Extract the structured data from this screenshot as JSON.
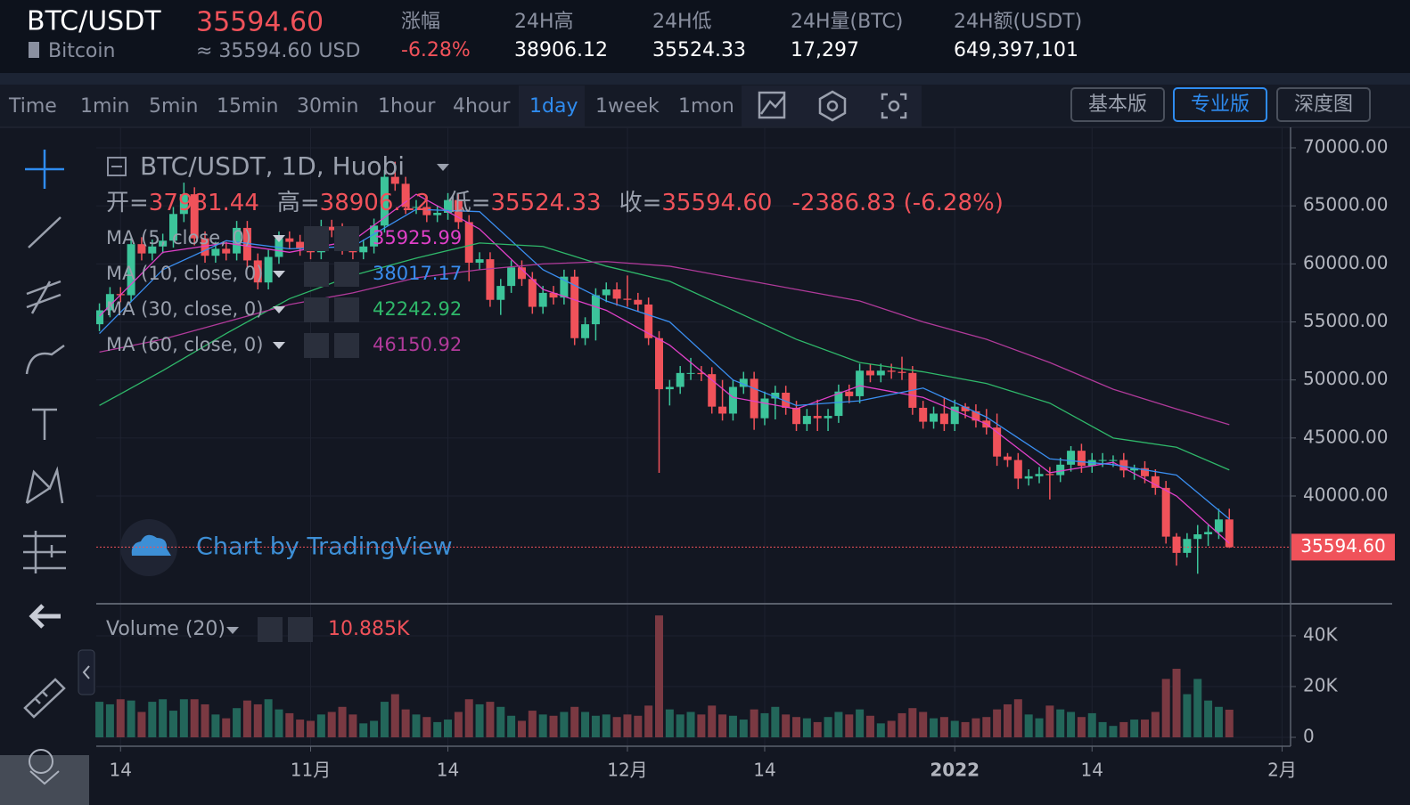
{
  "header": {
    "symbol": "BTC/USDT",
    "price": "35594.60",
    "name": "Bitcoin",
    "approx": "≈ 35594.60 USD",
    "stats": [
      {
        "label": "涨幅",
        "value": "-6.28%"
      },
      {
        "label": "24H高",
        "value": "38906.12"
      },
      {
        "label": "24H低",
        "value": "35524.33"
      },
      {
        "label": "24H量(BTC)",
        "value": "17,297"
      },
      {
        "label": "24H额(USDT)",
        "value": "649,397,101"
      }
    ]
  },
  "toolbar": {
    "intervals": [
      "Time",
      "1min",
      "5min",
      "15min",
      "30min",
      "1hour",
      "4hour",
      "1day",
      "1week",
      "1mon"
    ],
    "active": "1day",
    "views": [
      "基本版",
      "专业版",
      "深度图"
    ],
    "active_view": "专业版"
  },
  "legend": {
    "title": "BTC/USDT, 1D, Huobi",
    "ohlc": [
      {
        "label": "开=",
        "value": "37981.44"
      },
      {
        "label": "高=",
        "value": "38906.12"
      },
      {
        "label": "低=",
        "value": "35524.33"
      },
      {
        "label": "收=",
        "value": "35594.60"
      }
    ],
    "change": "-2386.83 (-6.28%)",
    "volume_title": "Volume (20)",
    "volume_value": "10.885K",
    "last_price": "35594.60"
  },
  "watermark": "Chart by TradingView",
  "chart_data": {
    "type": "candlestick",
    "grid": true,
    "up_color": "#3cc49a",
    "down_color": "#f0525a",
    "xlim": [
      -0.3,
      112.8
    ],
    "xticks": [
      {
        "value": 2,
        "label": "14"
      },
      {
        "value": 20,
        "label": "11月"
      },
      {
        "value": 33,
        "label": "14"
      },
      {
        "value": 50,
        "label": "12月"
      },
      {
        "value": 63,
        "label": "14"
      },
      {
        "value": 81,
        "label": "2022"
      },
      {
        "value": 94,
        "label": "14"
      },
      {
        "value": 112,
        "label": "2月"
      }
    ],
    "ylim": [
      30870,
      71765
    ],
    "yticks": [
      {
        "value": 40000,
        "label": "40000.00"
      },
      {
        "value": 45000,
        "label": "45000.00"
      },
      {
        "value": 50000,
        "label": "50000.00"
      },
      {
        "value": 55000,
        "label": "55000.00"
      },
      {
        "value": 60000,
        "label": "60000.00"
      },
      {
        "value": 65000,
        "label": "65000.00"
      },
      {
        "value": 70000,
        "label": "70000.00"
      }
    ],
    "open": [
      54800,
      56000,
      57400,
      57300,
      61700,
      60900,
      61500,
      62000,
      64300,
      66000,
      62200,
      60700,
      61300,
      60900,
      63100,
      60300,
      58400,
      60600,
      62200,
      61900,
      61300,
      61000,
      63200,
      62900,
      61400,
      61000,
      61500,
      63300,
      67500,
      66900,
      64900,
      64900,
      64200,
      64400,
      65500,
      63600,
      60100,
      60400,
      56900,
      58100,
      59700,
      58700,
      56300,
      57500,
      57100,
      58900,
      53600,
      54800,
      57300,
      57800,
      57000,
      56900,
      56500,
      53600,
      49200,
      49400,
      50600,
      50600,
      50500,
      47700,
      47100,
      49400,
      50100,
      46700,
      48400,
      48900,
      47600,
      46200,
      46900,
      46700,
      46900,
      49000,
      48600,
      50800,
      50400,
      50800,
      50700,
      50600,
      47600,
      46400,
      47100,
      46200,
      47700,
      47300,
      46500,
      45900,
      43400,
      43100,
      41500,
      41700,
      41900,
      41800,
      42700,
      43900,
      42600,
      43100,
      43100,
      43100,
      42200,
      42400,
      41700,
      40700,
      36500,
      35100,
      36300,
      36700,
      36900,
      37981.44
    ],
    "high": [
      56600,
      58000,
      58000,
      62300,
      62300,
      62100,
      62600,
      64900,
      67000,
      66600,
      62800,
      61900,
      61900,
      63700,
      63700,
      60900,
      61200,
      62800,
      62800,
      62500,
      61900,
      63800,
      63800,
      63500,
      62000,
      62100,
      63900,
      68100,
      68800,
      67500,
      65500,
      65500,
      65000,
      66100,
      66100,
      64200,
      61000,
      61000,
      58700,
      60300,
      60300,
      59300,
      58100,
      58100,
      59500,
      59500,
      55400,
      57900,
      58400,
      58400,
      59000,
      57500,
      57100,
      54200,
      50000,
      51200,
      51900,
      51200,
      51100,
      50000,
      50000,
      50700,
      50700,
      49000,
      49500,
      49500,
      48200,
      47500,
      48300,
      47500,
      49600,
      49600,
      51400,
      51400,
      51400,
      51400,
      52000,
      51200,
      48200,
      47700,
      48500,
      48300,
      48000,
      47900,
      47500,
      47100,
      43700,
      43700,
      42300,
      42500,
      42500,
      43300,
      44300,
      44500,
      43700,
      43700,
      43500,
      43700,
      42700,
      43000,
      42300,
      41300,
      36800,
      36800,
      37500,
      37500,
      38900,
      38906.12
    ],
    "low": [
      54200,
      55400,
      56700,
      56700,
      60300,
      60300,
      60900,
      61400,
      63600,
      61600,
      60100,
      60100,
      60300,
      60300,
      59700,
      57800,
      57800,
      60000,
      61300,
      60700,
      60400,
      60400,
      62300,
      60800,
      60400,
      60400,
      60900,
      62700,
      66300,
      64300,
      64300,
      63600,
      63600,
      63800,
      63000,
      58500,
      59500,
      56300,
      55600,
      57500,
      58100,
      55700,
      55700,
      56500,
      56500,
      53000,
      53000,
      53400,
      56700,
      56400,
      56300,
      55900,
      53000,
      42000,
      47800,
      48800,
      50000,
      49900,
      47100,
      46500,
      46500,
      48800,
      45700,
      46100,
      46600,
      47000,
      45600,
      45600,
      45600,
      45600,
      46300,
      48000,
      48000,
      49800,
      49800,
      50100,
      50000,
      47000,
      45800,
      45800,
      45600,
      45600,
      46700,
      45900,
      45300,
      42600,
      42500,
      40600,
      40900,
      41100,
      39700,
      41200,
      42100,
      42000,
      42000,
      42500,
      42500,
      41600,
      41400,
      41100,
      40100,
      35900,
      34000,
      34700,
      33300,
      35700,
      36300,
      35524.33
    ],
    "close": [
      56000,
      57400,
      57300,
      61700,
      60900,
      61500,
      62000,
      64300,
      66000,
      62200,
      60700,
      61300,
      60900,
      63100,
      60300,
      58400,
      60600,
      62200,
      61900,
      61300,
      61000,
      63200,
      62900,
      61400,
      61000,
      61500,
      63300,
      67500,
      66900,
      64900,
      64900,
      64200,
      64400,
      65500,
      63600,
      60100,
      60400,
      56900,
      58100,
      59700,
      58700,
      56300,
      57500,
      57100,
      58900,
      53600,
      54800,
      57300,
      57800,
      57000,
      56900,
      56500,
      53600,
      49200,
      49400,
      50600,
      50600,
      50500,
      47700,
      47100,
      49400,
      50100,
      46700,
      48400,
      48900,
      47600,
      46200,
      46900,
      46700,
      46900,
      49000,
      48600,
      50800,
      50400,
      50800,
      50700,
      50600,
      47600,
      46400,
      47100,
      46200,
      47700,
      47300,
      46500,
      45900,
      43400,
      43100,
      41500,
      41700,
      41900,
      41800,
      42700,
      43900,
      42600,
      43100,
      43100,
      43100,
      42200,
      42400,
      41700,
      40700,
      36500,
      35100,
      36300,
      36700,
      36900,
      37981.44,
      35594.6
    ],
    "ma": [
      {
        "name": "MA (5, close, 0)",
        "color": "#e040c8",
        "x": [
          0,
          6,
          12,
          18,
          24,
          30,
          36,
          42,
          48,
          54,
          60,
          66,
          72,
          78,
          84,
          90,
          96,
          102,
          107
        ],
        "values": [
          55500,
          61000,
          61800,
          61000,
          62000,
          66000,
          63000,
          57800,
          56000,
          53000,
          48500,
          47500,
          49500,
          48500,
          46200,
          42000,
          42900,
          40000,
          35925.99
        ]
      },
      {
        "name": "MA (10, close, 0)",
        "color": "#3a8ef0",
        "x": [
          0,
          6,
          12,
          18,
          24,
          30,
          36,
          42,
          48,
          54,
          60,
          66,
          72,
          78,
          84,
          90,
          96,
          102,
          107
        ],
        "values": [
          54000,
          59500,
          62000,
          61300,
          61500,
          64700,
          64500,
          59500,
          56800,
          55000,
          50000,
          47800,
          48200,
          49300,
          46800,
          43200,
          42700,
          41800,
          38017.17
        ]
      },
      {
        "name": "MA (30, close, 0)",
        "color": "#2fb86a",
        "x": [
          0,
          6,
          12,
          18,
          24,
          30,
          36,
          42,
          48,
          54,
          60,
          66,
          72,
          78,
          84,
          90,
          96,
          102,
          107
        ],
        "values": [
          47800,
          50800,
          54000,
          57000,
          59000,
          60500,
          61800,
          61500,
          59800,
          58500,
          56000,
          53500,
          51500,
          50700,
          49700,
          48000,
          45000,
          44200,
          42242.92
        ]
      },
      {
        "name": "MA (60, close, 0)",
        "color": "#b03a9a",
        "x": [
          0,
          6,
          12,
          18,
          24,
          30,
          36,
          42,
          48,
          54,
          60,
          66,
          72,
          78,
          84,
          90,
          96,
          102,
          107
        ],
        "values": [
          52400,
          53500,
          55000,
          56500,
          57500,
          58800,
          59500,
          60000,
          60200,
          59800,
          58800,
          57800,
          56800,
          55000,
          53500,
          51500,
          49200,
          47500,
          46150.92
        ]
      }
    ],
    "volume": {
      "ylim": [
        -3500,
        51900
      ],
      "yticks": [
        0,
        {
          "value": 20000,
          "label": "20K"
        },
        {
          "value": 40000,
          "label": "40K"
        }
      ],
      "values": [
        14000,
        13000,
        15000,
        14500,
        10000,
        14000,
        15000,
        10500,
        15000,
        15000,
        13000,
        9000,
        7500,
        11500,
        14500,
        13000,
        15000,
        11000,
        9500,
        7000,
        6500,
        9000,
        10000,
        12000,
        9000,
        5500,
        6500,
        14000,
        17000,
        11000,
        9000,
        8000,
        6000,
        7000,
        10000,
        15000,
        13000,
        14000,
        12000,
        8500,
        6500,
        10500,
        9000,
        8500,
        10000,
        12000,
        10000,
        8500,
        9000,
        8000,
        9000,
        8500,
        12500,
        48000,
        11000,
        9000,
        10000,
        9000,
        12500,
        9000,
        8500,
        7000,
        11000,
        9500,
        12000,
        9000,
        8000,
        7500,
        6000,
        8000,
        10000,
        9000,
        11000,
        8500,
        5500,
        6500,
        9500,
        11500,
        10000,
        7500,
        8000,
        6500,
        6000,
        7500,
        8000,
        11000,
        13000,
        15000,
        9000,
        7500,
        12500,
        11000,
        10000,
        8000,
        9500,
        6000,
        4500,
        6000,
        7000,
        7000,
        10000,
        23000,
        27000,
        17000,
        23000,
        14500,
        12000,
        10885
      ]
    }
  }
}
